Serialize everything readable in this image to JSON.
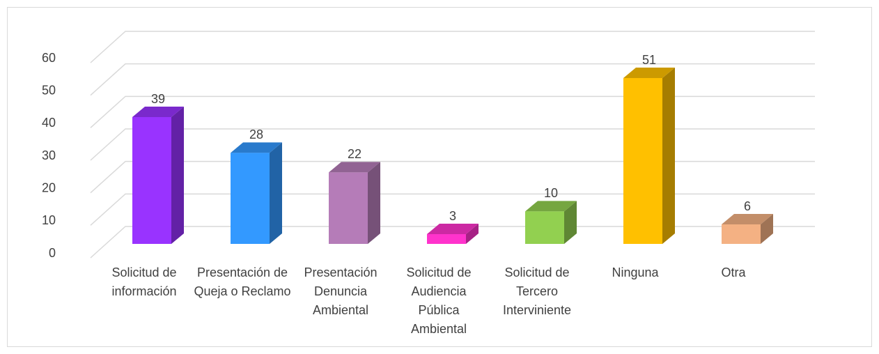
{
  "chart_data": {
    "type": "bar3d",
    "categories": [
      "Solicitud de información",
      "Presentación de Queja o Reclamo",
      "Presentación Denuncia Ambiental",
      "Solicitud de Audiencia Pública Ambiental",
      "Solicitud de Tercero Interviniente",
      "Ninguna",
      "Otra"
    ],
    "values": [
      39,
      28,
      22,
      3,
      10,
      51,
      6
    ],
    "colors": [
      "#9933ff",
      "#3399ff",
      "#b57cb8",
      "#ff33cc",
      "#92d050",
      "#ffc000",
      "#f4b183"
    ],
    "ylim": [
      0,
      60
    ],
    "yticks": [
      0,
      10,
      20,
      30,
      40,
      50,
      60
    ],
    "grid": true
  }
}
